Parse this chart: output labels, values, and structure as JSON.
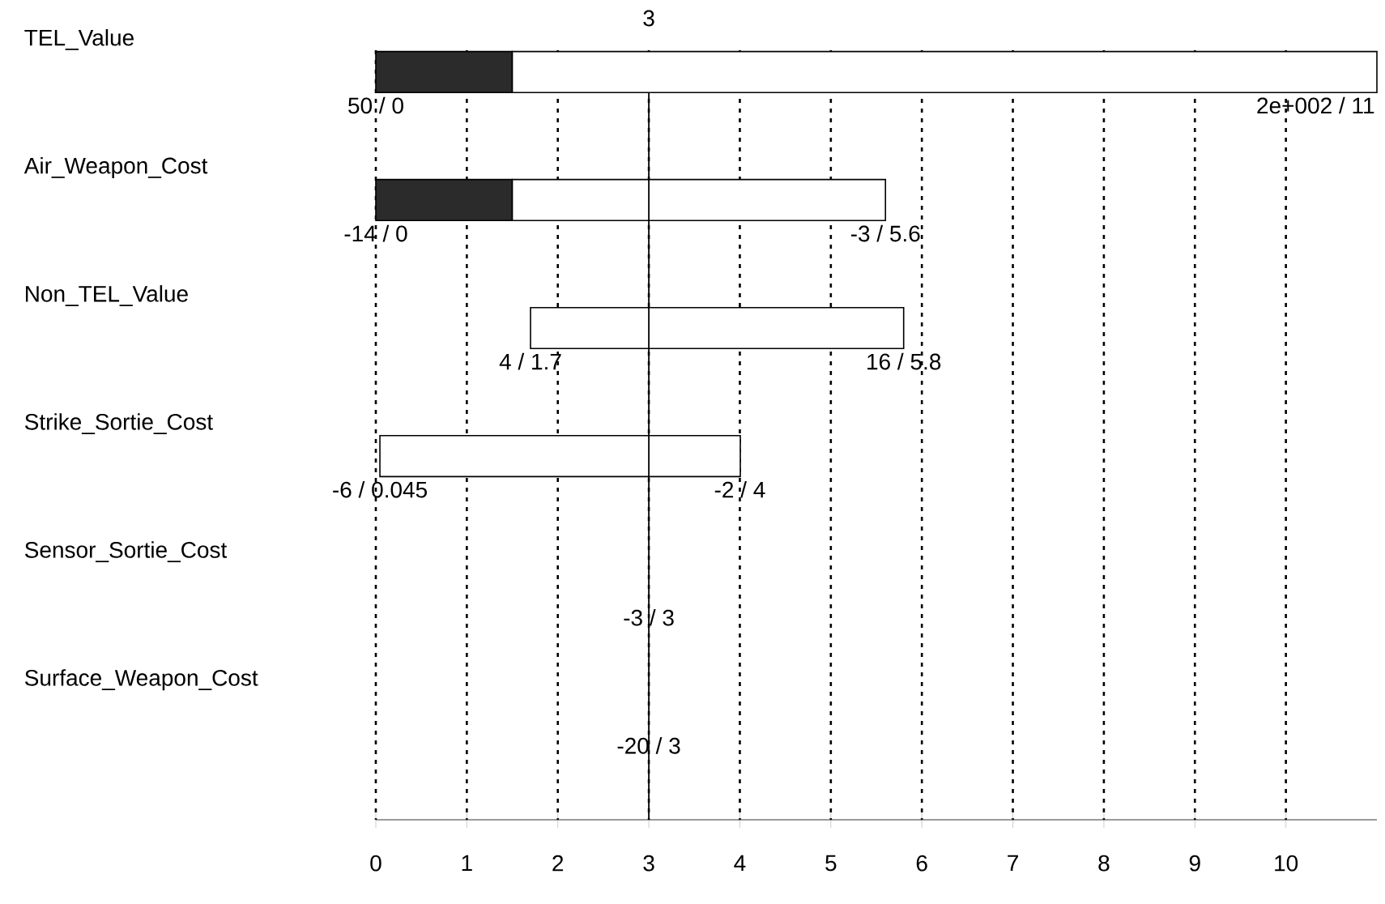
{
  "chart_data": {
    "type": "bar",
    "orientation": "horizontal",
    "categories": [
      "TEL_Value",
      "Air_Weapon_Cost",
      "Non_TEL_Value",
      "Strike_Sortie_Cost",
      "Sensor_Sortie_Cost",
      "Surface_Weapon_Cost"
    ],
    "series": [
      {
        "color": "#2b2b2b",
        "base": [
          0,
          0,
          null,
          null,
          null,
          null
        ],
        "values": [
          1.5,
          1.5,
          null,
          null,
          null,
          null
        ]
      },
      {
        "color": "#ffffff",
        "base": [
          1.5,
          1.5,
          1.7,
          0.045,
          null,
          null
        ],
        "values": [
          9.5,
          4.1,
          4.1,
          3.96,
          null,
          null
        ]
      }
    ],
    "xlim": [
      0,
      11
    ],
    "xticks": [
      0,
      1,
      2,
      3,
      4,
      5,
      6,
      7,
      8,
      9,
      10
    ],
    "grid": "x",
    "ref_lines": [
      {
        "axis": "x",
        "value": 3,
        "label": "3"
      }
    ],
    "annotations": [
      {
        "text": "50 / 0",
        "x": 0,
        "y": "TEL_Value"
      },
      {
        "text": "2e+002 / 11",
        "x": 11,
        "y": "TEL_Value"
      },
      {
        "text": "-14 / 0",
        "x": 0,
        "y": "Air_Weapon_Cost"
      },
      {
        "text": "-3 / 5.6",
        "x": 5.6,
        "y": "Air_Weapon_Cost"
      },
      {
        "text": "4 / 1.7",
        "x": 1.7,
        "y": "Non_TEL_Value"
      },
      {
        "text": "16 / 5.8",
        "x": 5.8,
        "y": "Non_TEL_Value"
      },
      {
        "text": "-6 / 0.045",
        "x": 0.045,
        "y": "Strike_Sortie_Cost"
      },
      {
        "text": "-2 / 4",
        "x": 4,
        "y": "Strike_Sortie_Cost"
      },
      {
        "text": "-3 / 3",
        "x": 3,
        "y": "Sensor_Sortie_Cost"
      },
      {
        "text": "-20 / 3",
        "x": 3,
        "y": "Surface_Weapon_Cost"
      }
    ]
  }
}
